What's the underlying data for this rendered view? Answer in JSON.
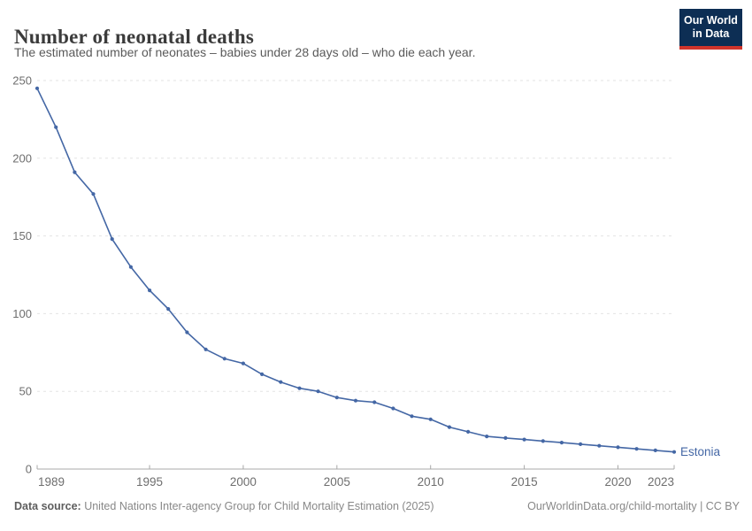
{
  "header": {
    "title": "Number of neonatal deaths",
    "subtitle": "The estimated number of neonates – babies under 28 days old – who die each year."
  },
  "logo": {
    "line1": "Our World",
    "line2": "in Data"
  },
  "chart_data": {
    "type": "line",
    "title": "Number of neonatal deaths",
    "xlabel": "",
    "ylabel": "",
    "xlim": [
      1989,
      2023
    ],
    "ylim": [
      0,
      250
    ],
    "x_ticks": [
      1989,
      1995,
      2000,
      2005,
      2010,
      2015,
      2020,
      2023
    ],
    "y_ticks": [
      0,
      50,
      100,
      150,
      200,
      250
    ],
    "grid": "horizontal-dashed",
    "legend_position": "end-of-line-label",
    "series": [
      {
        "name": "Estonia",
        "x": [
          1989,
          1990,
          1991,
          1992,
          1993,
          1994,
          1995,
          1996,
          1997,
          1998,
          1999,
          2000,
          2001,
          2002,
          2003,
          2004,
          2005,
          2006,
          2007,
          2008,
          2009,
          2010,
          2011,
          2012,
          2013,
          2014,
          2015,
          2016,
          2017,
          2018,
          2019,
          2020,
          2021,
          2022,
          2023
        ],
        "values": [
          245,
          220,
          191,
          177,
          148,
          130,
          115,
          103,
          88,
          77,
          71,
          68,
          61,
          56,
          52,
          50,
          46,
          44,
          43,
          39,
          34,
          32,
          27,
          24,
          21,
          20,
          19,
          18,
          17,
          16,
          15,
          14,
          13,
          12,
          11
        ]
      }
    ]
  },
  "colors": {
    "line": "#4467a5",
    "entity_label": "#4467a5",
    "grid": "#e3e3e3",
    "axis": "#a8a8a8",
    "tick_label": "#6e6e6e",
    "title": "#3b3b3b",
    "subtitle": "#5a5a5a",
    "footer_text": "#888888",
    "logo_bg": "#0d2e54",
    "logo_red": "#d1342b"
  },
  "footer": {
    "source_label": "Data source:",
    "source_text": " United Nations Inter-agency Group for Child Mortality Estimation (2025)",
    "link_text": "OurWorldinData.org/child-mortality | CC BY"
  }
}
